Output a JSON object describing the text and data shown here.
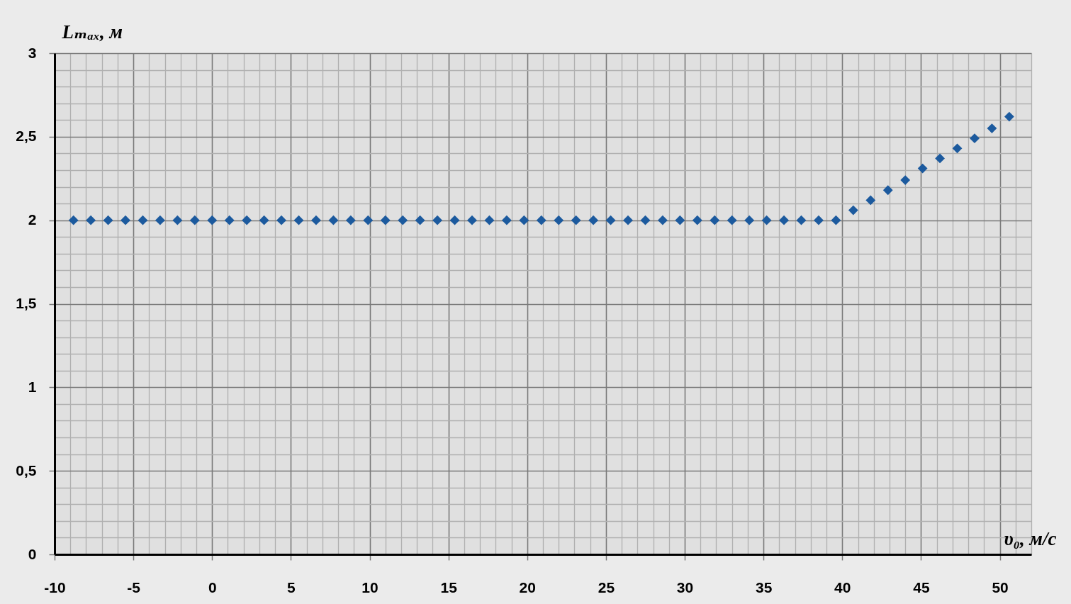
{
  "chart_data": {
    "type": "scatter",
    "xlabel": "υ₀, м/с",
    "ylabel": "Lₘₐₓ, м",
    "x": [
      -8.8,
      -7.7,
      -6.6,
      -5.5,
      -4.4,
      -3.3,
      -2.2,
      -1.1,
      0,
      1.1,
      2.2,
      3.3,
      4.4,
      5.5,
      6.6,
      7.7,
      8.8,
      9.9,
      11,
      12.1,
      13.2,
      14.3,
      15.4,
      16.5,
      17.6,
      18.7,
      19.8,
      20.9,
      22,
      23.1,
      24.2,
      25.3,
      26.4,
      27.5,
      28.6,
      29.7,
      30.8,
      31.9,
      33,
      34.1,
      35.2,
      36.3,
      37.4,
      38.5,
      39.6,
      40.7,
      41.8,
      42.9,
      44,
      45.1,
      46.2,
      47.3,
      48.4,
      49.5,
      50.6
    ],
    "series": [
      {
        "color": "#1c5a9e",
        "values": [
          2,
          2,
          2,
          2,
          2,
          2,
          2,
          2,
          2,
          2,
          2,
          2,
          2,
          2,
          2,
          2,
          2,
          2,
          2,
          2,
          2,
          2,
          2,
          2,
          2,
          2,
          2,
          2,
          2,
          2,
          2,
          2,
          2,
          2,
          2,
          2,
          2,
          2,
          2,
          2,
          2,
          2,
          2,
          2,
          2,
          2.06,
          2.12,
          2.18,
          2.24,
          2.31,
          2.37,
          2.43,
          2.49,
          2.55,
          2.62
        ]
      }
    ],
    "marker": "diamond",
    "xlim": [
      -10,
      52
    ],
    "ylim": [
      0,
      3
    ],
    "xticks": [
      -10,
      {
        "value": -9,
        "label": null
      },
      {
        "value": -8,
        "label": null
      },
      {
        "value": -7,
        "label": null
      },
      {
        "value": -6,
        "label": null
      },
      -5,
      {
        "value": -4,
        "label": null
      },
      {
        "value": -3,
        "label": null
      },
      {
        "value": -2,
        "label": null
      },
      {
        "value": -1,
        "label": null
      },
      0,
      {
        "value": 1,
        "label": null
      },
      {
        "value": 2,
        "label": null
      },
      {
        "value": 3,
        "label": null
      },
      {
        "value": 4,
        "label": null
      },
      5,
      {
        "value": 6,
        "label": null
      },
      {
        "value": 7,
        "label": null
      },
      {
        "value": 8,
        "label": null
      },
      {
        "value": 9,
        "label": null
      },
      10,
      {
        "value": 11,
        "label": null
      },
      {
        "value": 12,
        "label": null
      },
      {
        "value": 13,
        "label": null
      },
      {
        "value": 14,
        "label": null
      },
      15,
      {
        "value": 16,
        "label": null
      },
      {
        "value": 17,
        "label": null
      },
      {
        "value": 18,
        "label": null
      },
      {
        "value": 19,
        "label": null
      },
      20,
      {
        "value": 21,
        "label": null
      },
      {
        "value": 22,
        "label": null
      },
      {
        "value": 23,
        "label": null
      },
      {
        "value": 24,
        "label": null
      },
      25,
      {
        "value": 26,
        "label": null
      },
      {
        "value": 27,
        "label": null
      },
      {
        "value": 28,
        "label": null
      },
      {
        "value": 29,
        "label": null
      },
      30,
      {
        "value": 31,
        "label": null
      },
      {
        "value": 32,
        "label": null
      },
      {
        "value": 33,
        "label": null
      },
      {
        "value": 34,
        "label": null
      },
      35,
      {
        "value": 36,
        "label": null
      },
      {
        "value": 37,
        "label": null
      },
      {
        "value": 38,
        "label": null
      },
      {
        "value": 39,
        "label": null
      },
      40,
      {
        "value": 41,
        "label": null
      },
      {
        "value": 42,
        "label": null
      },
      {
        "value": 43,
        "label": null
      },
      {
        "value": 44,
        "label": null
      },
      45,
      {
        "value": 46,
        "label": null
      },
      {
        "value": 47,
        "label": null
      },
      {
        "value": 48,
        "label": null
      },
      {
        "value": 49,
        "label": null
      },
      50,
      {
        "value": 51,
        "label": null
      },
      {
        "value": 52,
        "label": null
      }
    ],
    "yticks": [
      0,
      {
        "value": 0.1,
        "label": null
      },
      {
        "value": 0.2,
        "label": null
      },
      {
        "value": 0.3,
        "label": null
      },
      {
        "value": 0.4,
        "label": null
      },
      {
        "value": 0.5,
        "label": "0,5"
      },
      {
        "value": 0.6,
        "label": null
      },
      {
        "value": 0.7,
        "label": null
      },
      {
        "value": 0.8,
        "label": null
      },
      {
        "value": 0.9,
        "label": null
      },
      1,
      {
        "value": 1.1,
        "label": null
      },
      {
        "value": 1.2,
        "label": null
      },
      {
        "value": 1.3,
        "label": null
      },
      {
        "value": 1.4,
        "label": null
      },
      {
        "value": 1.5,
        "label": "1,5"
      },
      {
        "value": 1.6,
        "label": null
      },
      {
        "value": 1.7,
        "label": null
      },
      {
        "value": 1.8,
        "label": null
      },
      {
        "value": 1.9,
        "label": null
      },
      2,
      {
        "value": 2.1,
        "label": null
      },
      {
        "value": 2.2,
        "label": null
      },
      {
        "value": 2.3,
        "label": null
      },
      {
        "value": 2.4,
        "label": null
      },
      {
        "value": 2.5,
        "label": "2,5"
      },
      {
        "value": 2.6,
        "label": null
      },
      {
        "value": 2.7,
        "label": null
      },
      {
        "value": 2.8,
        "label": null
      },
      {
        "value": 2.9,
        "label": null
      },
      3
    ],
    "grid": true
  }
}
